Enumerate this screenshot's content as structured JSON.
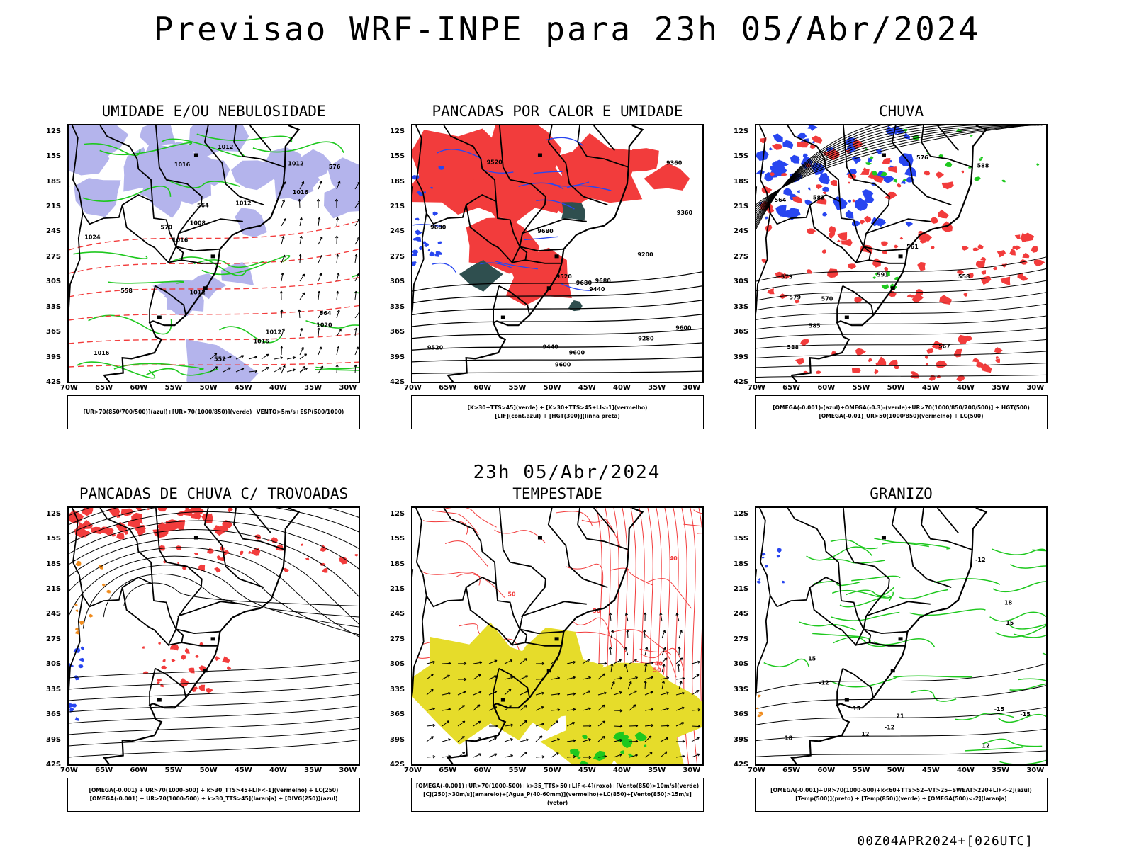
{
  "title": "Previsao WRF-INPE  para 23h 05/Abr/2024",
  "mid_title": "23h 05/Abr/2024",
  "footer": "00Z04APR2024+[026UTC]",
  "lat_ticks": [
    "12S",
    "15S",
    "18S",
    "21S",
    "24S",
    "27S",
    "30S",
    "33S",
    "36S",
    "39S",
    "42S"
  ],
  "lon_ticks": [
    "70W",
    "65W",
    "60W",
    "55W",
    "50W",
    "45W",
    "40W",
    "35W",
    "30W"
  ],
  "colors": {
    "red": "#f23c3c",
    "green": "#1ec81e",
    "blue": "#2846f0",
    "lavender": "#b4b4ec",
    "yellow": "#e6dc2a",
    "darkgreen": "#2f4f4f",
    "orange": "#f08c1e"
  },
  "panels": [
    {
      "title": "UMIDADE E/OU NEBULOSIDADE",
      "legend_lines": [
        "[UR>70(850/700/500)](azul)+[UR>70(1000/850)](verde)+VENTO>5m/s+ESP(500/1000)"
      ],
      "contour_labels": [
        "1016",
        "1012",
        "1012",
        "1024",
        "1020",
        "1012",
        "1012",
        "1016",
        "1016",
        "576",
        "570",
        "564",
        "564",
        "558",
        "552",
        "1016",
        "1012",
        "1008",
        "1016"
      ]
    },
    {
      "title": "PANCADAS POR CALOR E UMIDADE",
      "legend_lines": [
        "[K>30+TTS>45](verde) + [K>30+TTS>45+LI<-1](vermelho)",
        "[LIF](cont.azul) + [HGT(300)](linha preta)"
      ],
      "contour_labels": [
        "9680",
        "9680",
        "9680",
        "9680",
        "9600",
        "9600",
        "9520",
        "9520",
        "9520",
        "9440",
        "9440",
        "9360",
        "9280",
        "9200",
        "9360",
        "9600"
      ]
    },
    {
      "title": "CHUVA",
      "legend_lines": [
        "[OMEGA(-0.001)-(azul)+OMEGA(-0.3)-(verde)+UR>70(1000/850/700/500)] + HGT(500)",
        "[OMEGA(-0.01)_UR>50(1000/850)(vermelho) + LC(500)"
      ],
      "contour_labels": [
        "588",
        "588",
        "585",
        "582",
        "579",
        "576",
        "573",
        "570",
        "567",
        "564",
        "561",
        "558",
        "591"
      ]
    },
    {
      "title": "PANCADAS DE CHUVA C/ TROVOADAS",
      "legend_lines": [
        "[OMEGA(-0.001) + UR>70(1000-500) + k>30_TTS>45+LIF<-1](vermelho) + LC(250)",
        "[OMEGA(-0.001) + UR>70(1000-500) + k>30_TTS>45](laranja) + [DIVG(250)](azul)"
      ],
      "contour_labels": []
    },
    {
      "title": "TEMPESTADE",
      "legend_lines": [
        "[OMEGA(-0.001)+UR>70(1000-500)+k>35_TTS>50+LIF<-4](roxo)+[Vento(850)>10m/s](verde)",
        "[CJ(250)>30m/s](amarelo)+[Agua_P(40-60mm)](vermelho)+LC(850)+[Vento(850)>15m/s](vetor)"
      ],
      "contour_labels": [
        "50",
        "50",
        "40",
        "50",
        "40"
      ]
    },
    {
      "title": "GRANIZO",
      "legend_lines": [
        "[OMEGA(-0.001)+UR>70(1000-500)+k<60+TTS>52+VT>25+SWEAT>220+LIF<-2](azul)",
        "[Temp(500)](preto) + [Temp(850)](verde) + [OMEGA(500)<-2](laranja)"
      ],
      "contour_labels": [
        "-12",
        "-12",
        "-12",
        "-15",
        "-15",
        "15",
        "12",
        "18",
        "21",
        "18",
        "15",
        "12",
        "15"
      ]
    }
  ]
}
